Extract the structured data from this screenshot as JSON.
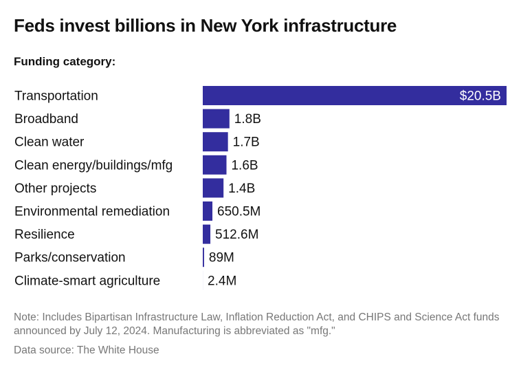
{
  "chart_data": {
    "type": "bar",
    "orientation": "horizontal",
    "title": "Feds invest billions in New York infrastructure",
    "subtitle": "Funding category:",
    "categories": [
      "Transportation",
      "Broadband",
      "Clean water",
      "Clean energy/buildings/mfg",
      "Other projects",
      "Environmental remediation",
      "Resilience",
      "Parks/conservation",
      "Climate-smart agriculture"
    ],
    "values": [
      20500,
      1800,
      1700,
      1600,
      1400,
      650.5,
      512.6,
      89,
      2.4
    ],
    "unit": "millions USD",
    "data_labels": [
      "$20.5B",
      "1.8B",
      "1.7B",
      "1.6B",
      "1.4B",
      "650.5M",
      "512.6M",
      "89M",
      "2.4M"
    ],
    "grid": false,
    "bar_color": "#332d9e"
  },
  "note": "Note: Includes Bipartisan Infrastructure Law, Inflation Reduction Act, and CHIPS and Science Act funds announced by July 12, 2024. Manufacturing is abbreviated as \"mfg.\"",
  "source": "Data source: The White House"
}
